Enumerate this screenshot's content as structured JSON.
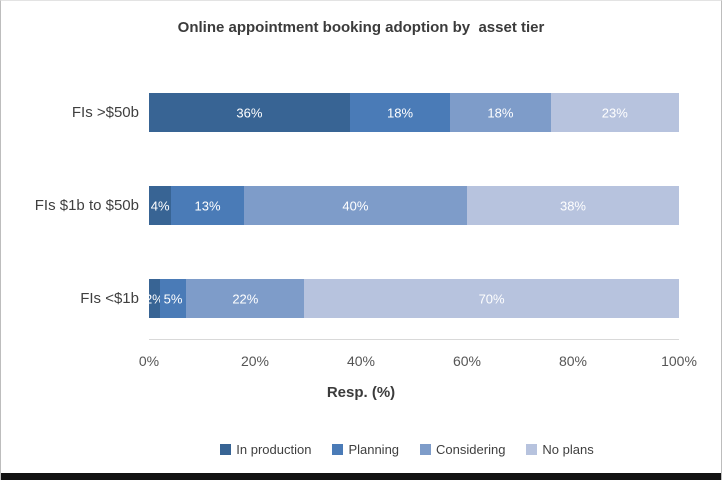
{
  "chart_data": {
    "type": "bar",
    "subtype": "stacked-100-horizontal",
    "title": "Online appointment booking adoption by  asset tier",
    "xlabel": "Resp. (%)",
    "categories": [
      "FIs >$50b",
      "FIs $1b to $50b",
      "FIs <$1b"
    ],
    "series": [
      {
        "name": "In production",
        "color": "#386494",
        "values": [
          36,
          4,
          2
        ]
      },
      {
        "name": "Planning",
        "color": "#4A7BB7",
        "values": [
          18,
          13,
          5
        ]
      },
      {
        "name": "Considering",
        "color": "#7E9CC9",
        "values": [
          18,
          40,
          22
        ]
      },
      {
        "name": "No plans",
        "color": "#B7C3DE",
        "values": [
          23,
          38,
          70
        ]
      }
    ],
    "data_label_suffix": "%",
    "x_ticks": [
      "0%",
      "20%",
      "40%",
      "60%",
      "80%",
      "100%"
    ],
    "xlim": [
      0,
      100
    ],
    "grid": false,
    "legend_position": "bottom",
    "colors": {
      "title_text": "#3b3b3b",
      "axis_text": "#555555",
      "category_text": "#3f3f3f",
      "bar_label_text": "#ffffff"
    }
  }
}
